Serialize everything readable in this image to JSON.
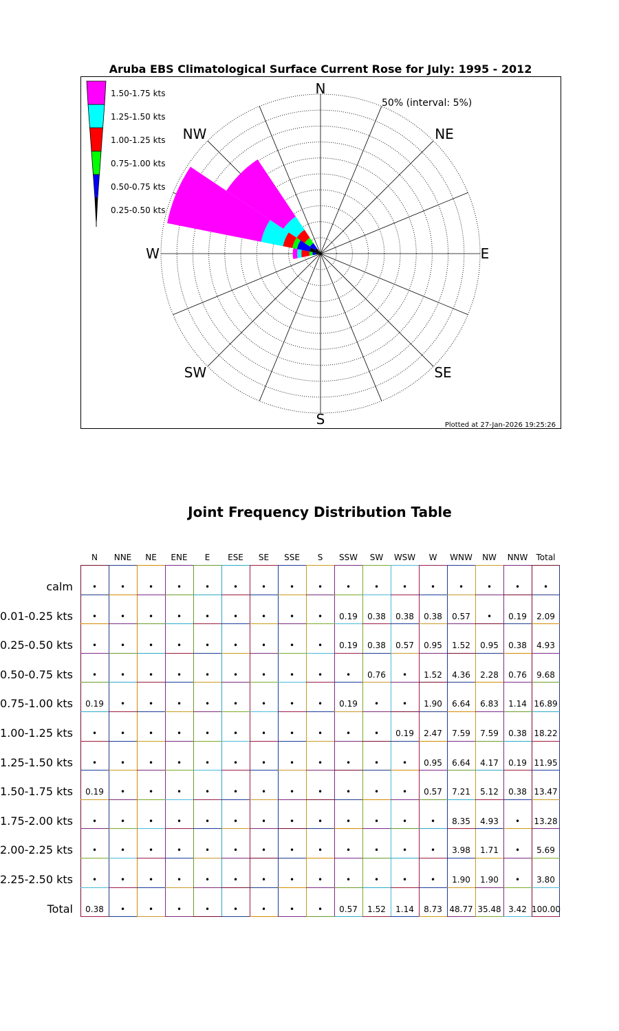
{
  "chart_data": [
    {
      "type": "wind-rose",
      "title": "Aruba EBS Climatological Surface Current Rose for July: 1995 - 2012",
      "radial_max_label": "50% (interval: 5%)",
      "radial_max": 50,
      "radial_interval": 5,
      "plotted_at": "Plotted at 27-Jan-2026 19:25:26",
      "direction_labels": [
        "N",
        "NE",
        "E",
        "SE",
        "S",
        "SW",
        "W",
        "NW"
      ],
      "directions": [
        "N",
        "NNE",
        "NE",
        "ENE",
        "E",
        "ESE",
        "SE",
        "SSE",
        "S",
        "SSW",
        "SW",
        "WSW",
        "W",
        "WNW",
        "NW",
        "NNW"
      ],
      "speed_bins": [
        {
          "label": "0.25-0.50 kts",
          "color": "#000000"
        },
        {
          "label": "0.50-0.75 kts",
          "color": "#0000ff"
        },
        {
          "label": "0.75-1.00 kts",
          "color": "#00ff00"
        },
        {
          "label": "1.00-1.25 kts",
          "color": "#ff0000"
        },
        {
          "label": "1.25-1.50 kts",
          "color": "#00ffff"
        },
        {
          "label": "1.50-1.75 kts",
          "color": "#ff00ff"
        }
      ],
      "legend_placement": "top-left",
      "petals": [
        {
          "direction": "W",
          "cumulative": [
            1.5,
            2.5,
            3.5,
            6.0,
            7.3,
            8.7
          ]
        },
        {
          "direction": "WNW",
          "cumulative": [
            3.5,
            7.5,
            9.0,
            12.0,
            19.0,
            49.0
          ]
        },
        {
          "direction": "NW",
          "cumulative": [
            2.0,
            4.0,
            6.0,
            9.0,
            14.0,
            35.5
          ]
        }
      ]
    },
    {
      "type": "table",
      "title": "Joint Frequency Distribution Table",
      "columns": [
        "N",
        "NNE",
        "NE",
        "ENE",
        "E",
        "ESE",
        "SE",
        "SSE",
        "S",
        "SSW",
        "SW",
        "WSW",
        "W",
        "WNW",
        "NW",
        "NNW",
        "Total"
      ],
      "rows": [
        {
          "label": "calm",
          "values": [
            "•",
            "•",
            "•",
            "•",
            "•",
            "•",
            "•",
            "•",
            "•",
            "•",
            "•",
            "•",
            "•",
            "•",
            "•",
            "•",
            "•"
          ]
        },
        {
          "label": "0.01-0.25 kts",
          "values": [
            "•",
            "•",
            "•",
            "•",
            "•",
            "•",
            "•",
            "•",
            "•",
            "0.19",
            "0.38",
            "0.38",
            "0.38",
            "0.57",
            "•",
            "0.19",
            "2.09"
          ]
        },
        {
          "label": "0.25-0.50 kts",
          "values": [
            "•",
            "•",
            "•",
            "•",
            "•",
            "•",
            "•",
            "•",
            "•",
            "0.19",
            "0.38",
            "0.57",
            "0.95",
            "1.52",
            "0.95",
            "0.38",
            "4.93"
          ]
        },
        {
          "label": "0.50-0.75 kts",
          "values": [
            "•",
            "•",
            "•",
            "•",
            "•",
            "•",
            "•",
            "•",
            "•",
            "•",
            "0.76",
            "•",
            "1.52",
            "4.36",
            "2.28",
            "0.76",
            "9.68"
          ]
        },
        {
          "label": "0.75-1.00 kts",
          "values": [
            "0.19",
            "•",
            "•",
            "•",
            "•",
            "•",
            "•",
            "•",
            "•",
            "0.19",
            "•",
            "•",
            "1.90",
            "6.64",
            "6.83",
            "1.14",
            "16.89"
          ]
        },
        {
          "label": "1.00-1.25 kts",
          "values": [
            "•",
            "•",
            "•",
            "•",
            "•",
            "•",
            "•",
            "•",
            "•",
            "•",
            "•",
            "0.19",
            "2.47",
            "7.59",
            "7.59",
            "0.38",
            "18.22"
          ]
        },
        {
          "label": "1.25-1.50 kts",
          "values": [
            "•",
            "•",
            "•",
            "•",
            "•",
            "•",
            "•",
            "•",
            "•",
            "•",
            "•",
            "•",
            "0.95",
            "6.64",
            "4.17",
            "0.19",
            "11.95"
          ]
        },
        {
          "label": "1.50-1.75 kts",
          "values": [
            "0.19",
            "•",
            "•",
            "•",
            "•",
            "•",
            "•",
            "•",
            "•",
            "•",
            "•",
            "•",
            "0.57",
            "7.21",
            "5.12",
            "0.38",
            "13.47"
          ]
        },
        {
          "label": "1.75-2.00 kts",
          "values": [
            "•",
            "•",
            "•",
            "•",
            "•",
            "•",
            "•",
            "•",
            "•",
            "•",
            "•",
            "•",
            "•",
            "8.35",
            "4.93",
            "•",
            "13.28"
          ]
        },
        {
          "label": "2.00-2.25 kts",
          "values": [
            "•",
            "•",
            "•",
            "•",
            "•",
            "•",
            "•",
            "•",
            "•",
            "•",
            "•",
            "•",
            "•",
            "3.98",
            "1.71",
            "•",
            "5.69"
          ]
        },
        {
          "label": "2.25-2.50 kts",
          "values": [
            "•",
            "•",
            "•",
            "•",
            "•",
            "•",
            "•",
            "•",
            "•",
            "•",
            "•",
            "•",
            "•",
            "1.90",
            "1.90",
            "•",
            "3.80"
          ]
        },
        {
          "label": "Total",
          "values": [
            "0.38",
            "•",
            "•",
            "•",
            "•",
            "•",
            "•",
            "•",
            "•",
            "0.57",
            "1.52",
            "1.14",
            "8.73",
            "48.77",
            "35.48",
            "3.42",
            "100.00"
          ]
        }
      ],
      "column_colors": [
        "#7a0a2a",
        "#1f3a8a",
        "#d18a00",
        "#7a2a8a",
        "#6a9a2a",
        "#2aa8c8",
        "#9a1a3a",
        "#1a3a9a",
        "#c89a1a",
        "#7a2a7a",
        "#7aa82a",
        "#4ab8d8",
        "#9a1a4a",
        "#1a3a9a",
        "#c8982a",
        "#7a2a7a"
      ]
    }
  ]
}
